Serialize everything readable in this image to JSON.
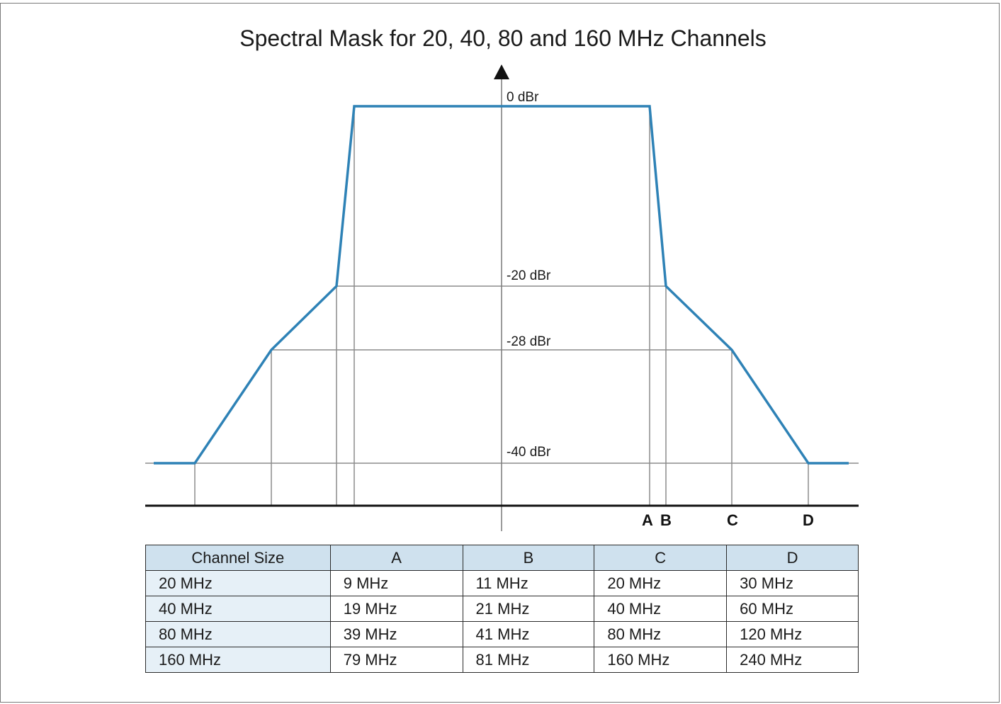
{
  "title": "Spectral Mask for 20, 40, 80 and 160 MHz Channels",
  "colors": {
    "mask_line": "#2e82b6",
    "grid_line": "#8c8c8c",
    "header_fill": "#cfe1ee",
    "row_fill": "#e6f0f7"
  },
  "levels": {
    "l0": "0 dBr",
    "l20": "-20 dBr",
    "l28": "-28 dBr",
    "l40": "-40 dBr"
  },
  "markers": {
    "a": "A",
    "b": "B",
    "c": "C",
    "d": "D"
  },
  "table": {
    "headers": [
      "Channel Size",
      "A",
      "B",
      "C",
      "D"
    ],
    "rows": [
      [
        "20 MHz",
        "9 MHz",
        "11 MHz",
        "20 MHz",
        "30 MHz"
      ],
      [
        "40 MHz",
        "19 MHz",
        "21 MHz",
        "40 MHz",
        "60 MHz"
      ],
      [
        "80 MHz",
        "39 MHz",
        "41 MHz",
        "80 MHz",
        "120 MHz"
      ],
      [
        "160 MHz",
        "79 MHz",
        "81 MHz",
        "160 MHz",
        "240 MHz"
      ]
    ]
  }
}
